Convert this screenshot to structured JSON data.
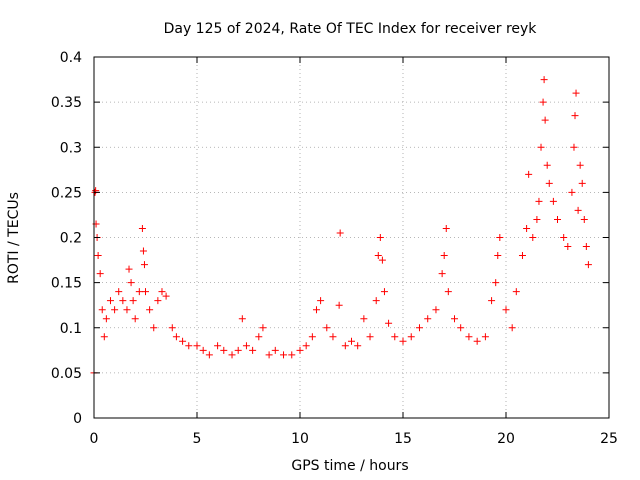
{
  "chart_data": {
    "type": "scatter",
    "title": "Day 125 of 2024, Rate Of TEC Index for receiver reyk",
    "xlabel": "GPS time / hours",
    "ylabel": "ROTI / TECUs",
    "xlim": [
      0,
      25
    ],
    "ylim": [
      0,
      0.4
    ],
    "x_ticks": [
      0,
      5,
      10,
      15,
      20,
      25
    ],
    "y_ticks": [
      0,
      0.05,
      0.1,
      0.15,
      0.2,
      0.25,
      0.3,
      0.35,
      0.4
    ],
    "x_tick_labels": [
      "0",
      "5",
      "10",
      "15",
      "20",
      "25"
    ],
    "y_tick_labels": [
      "0",
      "0.05",
      "0.1",
      "0.15",
      "0.2",
      "0.25",
      "0.3",
      "0.35",
      "0.4"
    ],
    "grid": true,
    "marker": "plus",
    "color": "#ff0000",
    "series": [
      {
        "points": [
          [
            0.0,
            0.05
          ],
          [
            0.05,
            0.25
          ],
          [
            0.08,
            0.252
          ],
          [
            0.1,
            0.215
          ],
          [
            0.15,
            0.2
          ],
          [
            0.2,
            0.18
          ],
          [
            0.3,
            0.16
          ],
          [
            0.4,
            0.12
          ],
          [
            0.5,
            0.09
          ],
          [
            0.6,
            0.11
          ],
          [
            0.8,
            0.13
          ],
          [
            1.0,
            0.12
          ],
          [
            1.2,
            0.14
          ],
          [
            1.4,
            0.13
          ],
          [
            1.6,
            0.12
          ],
          [
            1.7,
            0.165
          ],
          [
            1.8,
            0.15
          ],
          [
            1.9,
            0.13
          ],
          [
            2.0,
            0.11
          ],
          [
            2.2,
            0.14
          ],
          [
            2.35,
            0.21
          ],
          [
            2.4,
            0.185
          ],
          [
            2.45,
            0.17
          ],
          [
            2.5,
            0.14
          ],
          [
            2.7,
            0.12
          ],
          [
            2.9,
            0.1
          ],
          [
            3.1,
            0.13
          ],
          [
            3.3,
            0.14
          ],
          [
            3.5,
            0.135
          ],
          [
            3.8,
            0.1
          ],
          [
            4.0,
            0.09
          ],
          [
            4.3,
            0.085
          ],
          [
            4.6,
            0.08
          ],
          [
            5.0,
            0.08
          ],
          [
            5.3,
            0.075
          ],
          [
            5.6,
            0.07
          ],
          [
            6.0,
            0.08
          ],
          [
            6.3,
            0.075
          ],
          [
            6.7,
            0.07
          ],
          [
            7.0,
            0.075
          ],
          [
            7.2,
            0.11
          ],
          [
            7.4,
            0.08
          ],
          [
            7.7,
            0.075
          ],
          [
            8.0,
            0.09
          ],
          [
            8.2,
            0.1
          ],
          [
            8.5,
            0.07
          ],
          [
            8.8,
            0.075
          ],
          [
            9.2,
            0.07
          ],
          [
            9.6,
            0.07
          ],
          [
            10.0,
            0.075
          ],
          [
            10.3,
            0.08
          ],
          [
            10.6,
            0.09
          ],
          [
            10.8,
            0.12
          ],
          [
            11.0,
            0.13
          ],
          [
            11.3,
            0.1
          ],
          [
            11.6,
            0.09
          ],
          [
            11.9,
            0.125
          ],
          [
            11.95,
            0.205
          ],
          [
            12.2,
            0.08
          ],
          [
            12.5,
            0.085
          ],
          [
            12.8,
            0.08
          ],
          [
            13.1,
            0.11
          ],
          [
            13.4,
            0.09
          ],
          [
            13.7,
            0.13
          ],
          [
            13.8,
            0.18
          ],
          [
            13.9,
            0.2
          ],
          [
            14.0,
            0.175
          ],
          [
            14.1,
            0.14
          ],
          [
            14.3,
            0.105
          ],
          [
            14.6,
            0.09
          ],
          [
            15.0,
            0.085
          ],
          [
            15.4,
            0.09
          ],
          [
            15.8,
            0.1
          ],
          [
            16.2,
            0.11
          ],
          [
            16.6,
            0.12
          ],
          [
            16.9,
            0.16
          ],
          [
            17.0,
            0.18
          ],
          [
            17.1,
            0.21
          ],
          [
            17.2,
            0.14
          ],
          [
            17.5,
            0.11
          ],
          [
            17.8,
            0.1
          ],
          [
            18.2,
            0.09
          ],
          [
            18.6,
            0.085
          ],
          [
            19.0,
            0.09
          ],
          [
            19.3,
            0.13
          ],
          [
            19.5,
            0.15
          ],
          [
            19.6,
            0.18
          ],
          [
            19.7,
            0.2
          ],
          [
            20.0,
            0.12
          ],
          [
            20.3,
            0.1
          ],
          [
            20.5,
            0.14
          ],
          [
            20.8,
            0.18
          ],
          [
            21.0,
            0.21
          ],
          [
            21.1,
            0.27
          ],
          [
            21.3,
            0.2
          ],
          [
            21.5,
            0.22
          ],
          [
            21.6,
            0.24
          ],
          [
            21.7,
            0.3
          ],
          [
            21.8,
            0.35
          ],
          [
            21.85,
            0.375
          ],
          [
            21.9,
            0.33
          ],
          [
            22.0,
            0.28
          ],
          [
            22.1,
            0.26
          ],
          [
            22.3,
            0.24
          ],
          [
            22.5,
            0.22
          ],
          [
            22.8,
            0.2
          ],
          [
            23.0,
            0.19
          ],
          [
            23.2,
            0.25
          ],
          [
            23.3,
            0.3
          ],
          [
            23.35,
            0.335
          ],
          [
            23.4,
            0.36
          ],
          [
            23.5,
            0.23
          ],
          [
            23.6,
            0.28
          ],
          [
            23.7,
            0.26
          ],
          [
            23.8,
            0.22
          ],
          [
            23.9,
            0.19
          ],
          [
            24.0,
            0.17
          ]
        ]
      }
    ]
  }
}
